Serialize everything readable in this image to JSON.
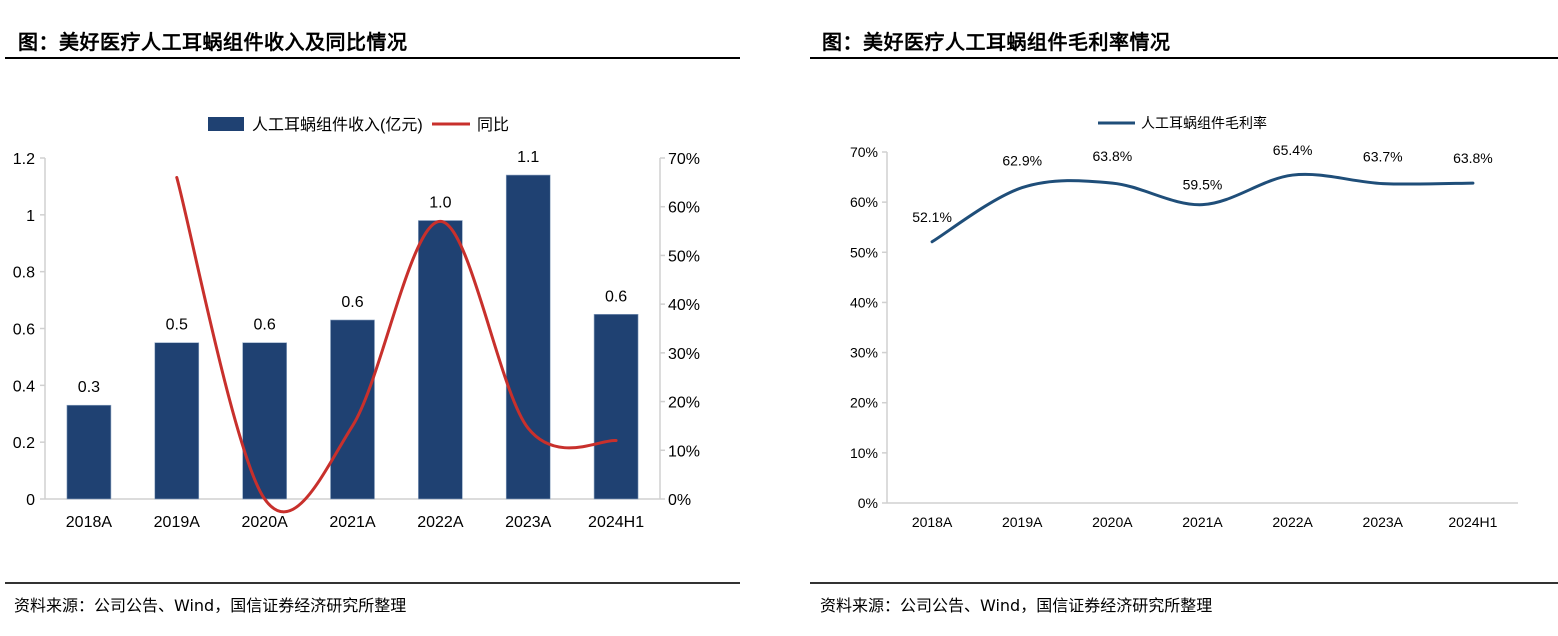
{
  "panels": {
    "left": {
      "title": "图：美好医疗人工耳蜗组件收入及同比情况",
      "source": "资料来源：公司公告、Wind，国信证券经济研究所整理"
    },
    "right": {
      "title": "图：美好医疗人工耳蜗组件毛利率情况",
      "source": "资料来源：公司公告、Wind，国信证券经济研究所整理"
    }
  },
  "chart_data": [
    {
      "type": "bar",
      "title": "图：美好医疗人工耳蜗组件收入及同比情况",
      "categories": [
        "2018A",
        "2019A",
        "2020A",
        "2021A",
        "2022A",
        "2023A",
        "2024H1"
      ],
      "series": [
        {
          "name": "人工耳蜗组件收入(亿元)",
          "type": "bar",
          "axis": "left",
          "color": "#1F4172",
          "values": [
            0.33,
            0.55,
            0.55,
            0.63,
            0.98,
            1.14,
            0.65
          ],
          "labels": [
            "0.3",
            "0.5",
            "0.6",
            "0.6",
            "1.0",
            "1.1",
            "0.6"
          ]
        },
        {
          "name": "同比",
          "type": "line",
          "axis": "right",
          "color": "#C8302C",
          "smooth": true,
          "values": [
            null,
            0.66,
            0.0,
            0.15,
            0.57,
            0.145,
            0.12
          ]
        }
      ],
      "y_left": {
        "min": 0,
        "max": 1.2,
        "ticks": [
          0,
          0.2,
          0.4,
          0.6,
          0.8,
          1.0,
          1.2
        ],
        "tick_labels": [
          "0",
          "0.2",
          "0.4",
          "0.6",
          "0.8",
          "1",
          "1.2"
        ]
      },
      "y_right": {
        "min": 0,
        "max": 0.7,
        "ticks": [
          0,
          0.1,
          0.2,
          0.3,
          0.4,
          0.5,
          0.6,
          0.7
        ],
        "tick_labels": [
          "0%",
          "10%",
          "20%",
          "30%",
          "40%",
          "50%",
          "60%",
          "70%"
        ]
      },
      "legend": {
        "position": "top-center",
        "items": [
          "人工耳蜗组件收入(亿元)",
          "同比"
        ]
      },
      "grid": false,
      "xlabel": "",
      "ylabel": ""
    },
    {
      "type": "line",
      "title": "图：美好医疗人工耳蜗组件毛利率情况",
      "categories": [
        "2018A",
        "2019A",
        "2020A",
        "2021A",
        "2022A",
        "2023A",
        "2024H1"
      ],
      "series": [
        {
          "name": "人工耳蜗组件毛利率",
          "color": "#1F4E79",
          "smooth": true,
          "values": [
            0.521,
            0.629,
            0.638,
            0.595,
            0.654,
            0.637,
            0.638
          ],
          "labels": [
            "52.1%",
            "62.9%",
            "63.8%",
            "59.5%",
            "65.4%",
            "63.7%",
            "63.8%"
          ]
        }
      ],
      "y": {
        "min": 0,
        "max": 0.7,
        "ticks": [
          0,
          0.1,
          0.2,
          0.3,
          0.4,
          0.5,
          0.6,
          0.7
        ],
        "tick_labels": [
          "0%",
          "10%",
          "20%",
          "30%",
          "40%",
          "50%",
          "60%",
          "70%"
        ]
      },
      "legend": {
        "position": "top-center",
        "items": [
          "人工耳蜗组件毛利率"
        ]
      },
      "grid": false,
      "xlabel": "",
      "ylabel": ""
    }
  ]
}
